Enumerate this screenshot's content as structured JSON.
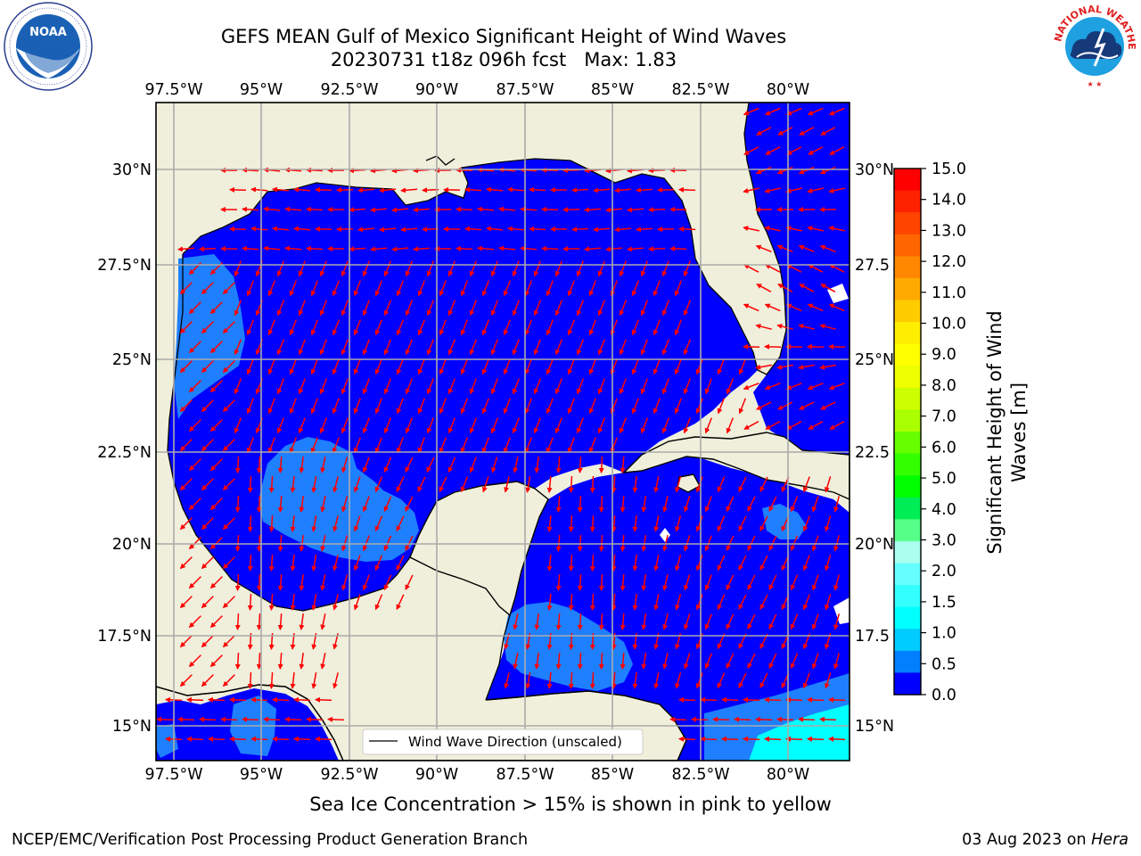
{
  "title": {
    "line1": "GEFS MEAN Gulf of Mexico Significant Height of Wind Waves",
    "line2": "20230731 t18z 096h fcst   Max: 1.83"
  },
  "logos": {
    "left": "noaa-logo",
    "right": "national-weather-service-logo",
    "left_text": "NOAA",
    "right_text": "NATIONAL WEATHER SERVICE"
  },
  "map": {
    "lon_ticks": [
      "97.5°W",
      "95°W",
      "92.5°W",
      "90°W",
      "87.5°W",
      "85°W",
      "82.5°W",
      "80°W"
    ],
    "lat_ticks_left": [
      "30°N",
      "27.5°N",
      "25°N",
      "22.5°N",
      "20°N",
      "17.5°N",
      "15°N"
    ],
    "lat_ticks_right": [
      "30°N",
      "27.5",
      "25°N",
      "22.5",
      "20°N",
      "17.5",
      "15°N"
    ],
    "land_color": "#efefdc",
    "legend_label": "Wind Wave Direction (unscaled)",
    "arrow_color": "#ff0000"
  },
  "colorbar": {
    "label": "Significant Height of Wind Waves [m]",
    "label_line1": "Significant Height of Wind",
    "label_line2": "Waves [m]",
    "ticks": [
      "15.0",
      "14.0",
      "13.0",
      "12.0",
      "11.0",
      "10.0",
      "9.0",
      "8.0",
      "7.0",
      "6.0",
      "5.0",
      "4.0",
      "3.0",
      "2.0",
      "1.5",
      "1.0",
      "0.5",
      "0.0"
    ],
    "colors_top_to_bottom": [
      "#ff0000",
      "#ff2200",
      "#ff4400",
      "#ff6600",
      "#ff8800",
      "#ffaa00",
      "#ffcc00",
      "#ffee00",
      "#ffff00",
      "#eeff00",
      "#ccff00",
      "#aaff00",
      "#66ff00",
      "#33ff00",
      "#00ff00",
      "#00ee55",
      "#55ff88",
      "#aaffee",
      "#66ffff",
      "#33ffff",
      "#00ffff",
      "#00ccff",
      "#0080ff",
      "#0000ff"
    ]
  },
  "note": "Sea Ice Concentration > 15% is shown in pink to yellow",
  "footer": {
    "left": "NCEP/EMC/Verification Post Processing Product Generation Branch",
    "date": "03 Aug 2023 on ",
    "machine": "Hera"
  }
}
